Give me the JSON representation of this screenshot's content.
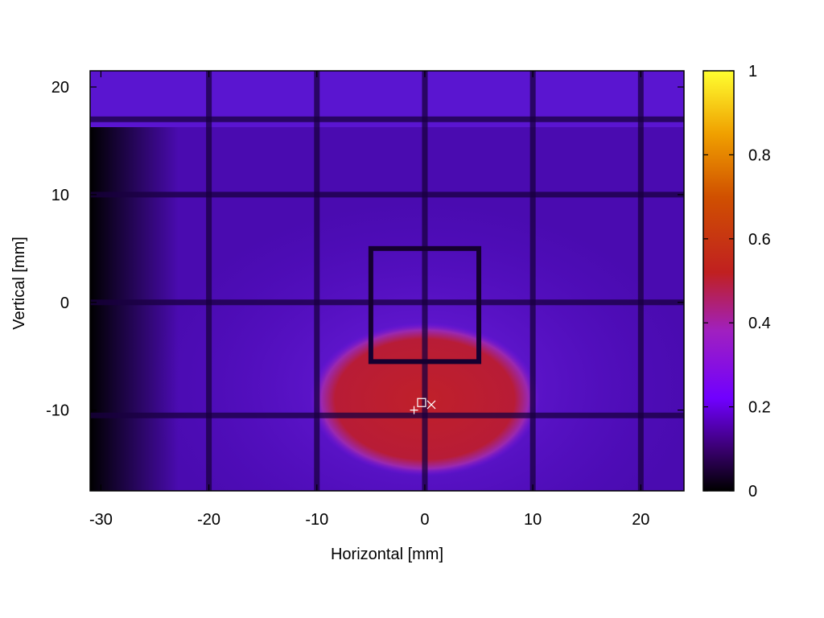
{
  "chart_data": {
    "type": "heatmap",
    "title": "",
    "xlabel": "Horizontal [mm]",
    "ylabel": "Vertical [mm]",
    "xlim": [
      -31,
      24
    ],
    "ylim": [
      -17.5,
      21.5
    ],
    "x_ticks": [
      -30,
      -20,
      -10,
      0,
      10,
      20
    ],
    "x_tick_labels": [
      "-30",
      "-20",
      "-10",
      "0",
      "10",
      "20"
    ],
    "y_ticks": [
      -10,
      0,
      10,
      20
    ],
    "y_tick_labels": [
      "-10",
      "0",
      "10",
      "20"
    ],
    "colorbar": {
      "range": [
        0,
        1
      ],
      "ticks": [
        0,
        0.2,
        0.4,
        0.6,
        0.8,
        1
      ],
      "tick_labels": [
        "0",
        "0.2",
        "0.4",
        "0.6",
        "0.8",
        "1"
      ],
      "colormap": [
        "#000000",
        "#3a0070",
        "#7000ff",
        "#a020c0",
        "#c02020",
        "#e07000",
        "#ffe000",
        "#ffff40"
      ]
    },
    "background_color": "#4a0bb0",
    "hotspot": {
      "center": [
        0,
        -9
      ],
      "half_width": 9.5,
      "half_height": 6.5,
      "intensity": 0.45,
      "color": "#b81c30"
    },
    "grid_lines_x": [
      -20,
      -10,
      0,
      10,
      20
    ],
    "grid_lines_y": [
      -10.5,
      0,
      10,
      17
    ],
    "inner_square": {
      "x": [
        -5,
        5
      ],
      "y": [
        -5.5,
        5
      ]
    },
    "markers": [
      {
        "symbol": "+",
        "x": -1,
        "y": -10
      },
      {
        "symbol": "square",
        "x": -0.3,
        "y": -9.3
      },
      {
        "symbol": "x",
        "x": 0.6,
        "y": -9.5
      }
    ],
    "grid": false,
    "legend": "none"
  }
}
